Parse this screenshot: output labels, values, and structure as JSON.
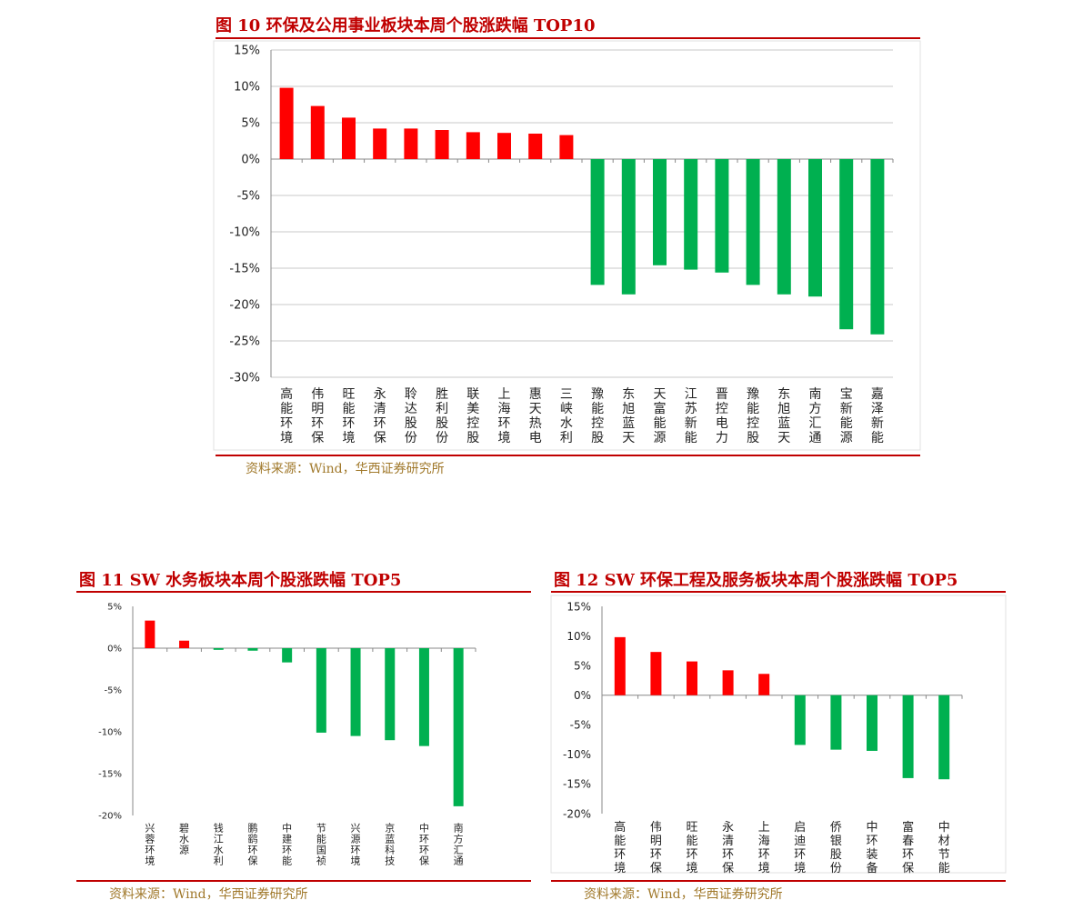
{
  "colors": {
    "positive": "#ff0000",
    "negative": "#00b050",
    "accent": "#c00000",
    "source": "#a0782a",
    "grid": "#c8c8c8",
    "axis": "#888888"
  },
  "fig10": {
    "title": "图 10 环保及公用事业板块本周个股涨跌幅 TOP10",
    "source": "资料来源：Wind，华西证券研究所"
  },
  "fig11": {
    "title": "图 11 SW 水务板块本周个股涨跌幅 TOP5",
    "source": "资料来源：Wind，华西证券研究所"
  },
  "fig12": {
    "title": "图 12 SW 环保工程及服务板块本周个股涨跌幅 TOP5",
    "source": "资料来源：Wind，华西证券研究所"
  },
  "chart_data": [
    {
      "id": "fig10",
      "type": "bar",
      "title": "图 10 环保及公用事业板块本周个股涨跌幅 TOP10",
      "xlabel": "",
      "ylabel": "",
      "ylim": [
        -30,
        15
      ],
      "yticks": [
        15,
        10,
        5,
        0,
        -5,
        -10,
        -15,
        -20,
        -25,
        -30
      ],
      "grid": true,
      "categories": [
        "高能环境",
        "伟明环保",
        "旺能环境",
        "永清环保",
        "聆达股份",
        "胜利股份",
        "联美控股",
        "上海环境",
        "惠天热电",
        "三峡水利",
        "豫能控股",
        "东旭蓝天",
        "天富能源",
        "江苏新能",
        "晋控电力",
        "豫能控股",
        "东旭蓝天",
        "南方汇通",
        "宝新能源",
        "嘉泽新能"
      ],
      "values": [
        9.8,
        7.3,
        5.7,
        4.2,
        4.2,
        4.0,
        3.7,
        3.6,
        3.5,
        3.3,
        -17.3,
        -18.6,
        -14.6,
        -15.2,
        -15.6,
        -17.3,
        -18.6,
        -18.9,
        -23.4,
        -24.1
      ]
    },
    {
      "id": "fig11",
      "type": "bar",
      "title": "图 11 SW 水务板块本周个股涨跌幅 TOP5",
      "xlabel": "",
      "ylabel": "",
      "ylim": [
        -20,
        5
      ],
      "yticks": [
        5,
        0,
        -5,
        -10,
        -15,
        -20
      ],
      "grid": false,
      "categories": [
        "兴蓉环境",
        "碧水源",
        "钱江水利",
        "鹏鹞环保",
        "中建环能",
        "节能国祯",
        "兴源环境",
        "京蓝科技",
        "中环环保",
        "南方汇通"
      ],
      "values": [
        3.3,
        0.9,
        -0.2,
        -0.3,
        -1.7,
        -10.1,
        -10.5,
        -11.0,
        -11.7,
        -18.9
      ]
    },
    {
      "id": "fig12",
      "type": "bar",
      "title": "图 12 SW 环保工程及服务板块本周个股涨跌幅 TOP5",
      "xlabel": "",
      "ylabel": "",
      "ylim": [
        -20,
        15
      ],
      "yticks": [
        15,
        10,
        5,
        0,
        -5,
        -10,
        -15,
        -20
      ],
      "grid": false,
      "categories": [
        "高能环境",
        "伟明环保",
        "旺能环境",
        "永清环保",
        "上海环境",
        "启迪环境",
        "侨银股份",
        "中环装备",
        "富春环保",
        "中材节能"
      ],
      "values": [
        9.8,
        7.3,
        5.7,
        4.2,
        3.6,
        -8.4,
        -9.2,
        -9.4,
        -14.0,
        -14.2
      ]
    }
  ]
}
